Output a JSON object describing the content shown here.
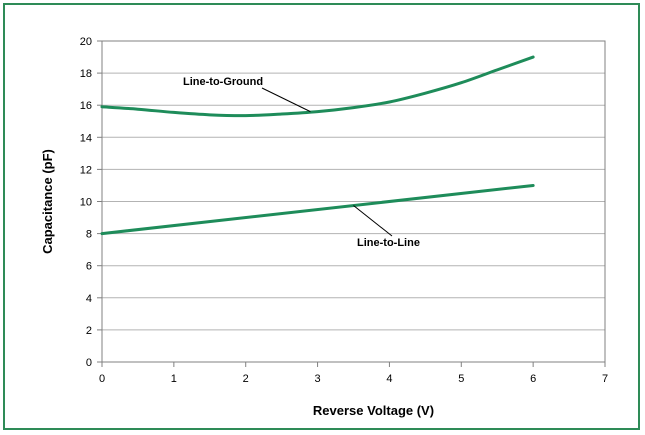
{
  "chart_data": {
    "type": "line",
    "title": "",
    "xlabel": "Reverse Voltage (V)",
    "ylabel": "Capacitance (pF)",
    "xlim": [
      0,
      7
    ],
    "ylim": [
      0,
      20
    ],
    "xticks": [
      0,
      1,
      2,
      3,
      4,
      5,
      6,
      7
    ],
    "yticks": [
      0,
      2,
      4,
      6,
      8,
      10,
      12,
      14,
      16,
      18,
      20
    ],
    "grid": "horizontal",
    "legend": "none",
    "series": [
      {
        "name": "Line-to-Ground",
        "color": "#1e8c5a",
        "x": [
          0,
          0.5,
          1,
          1.5,
          2,
          2.5,
          3,
          3.5,
          4,
          4.5,
          5,
          5.5,
          6
        ],
        "y": [
          15.9,
          15.75,
          15.55,
          15.4,
          15.35,
          15.45,
          15.6,
          15.85,
          16.2,
          16.75,
          17.4,
          18.2,
          19.0
        ]
      },
      {
        "name": "Line-to-Line",
        "color": "#1e8c5a",
        "x": [
          0,
          6
        ],
        "y": [
          8.0,
          11.0
        ]
      }
    ],
    "annotations": [
      {
        "text": "Line-to-Ground",
        "series": 0,
        "x": 2.9,
        "y": 15.6
      },
      {
        "text": "Line-to-Line",
        "series": 1,
        "x": 3.5,
        "y": 9.75
      }
    ]
  }
}
